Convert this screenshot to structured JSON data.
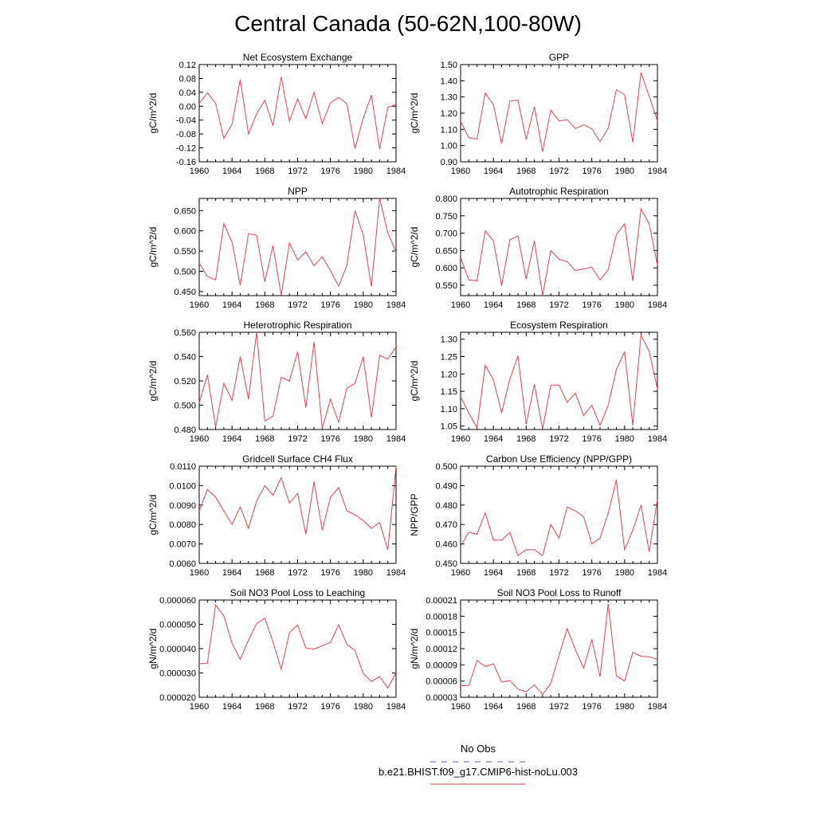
{
  "page": {
    "title": "Central Canada (50-62N,100-80W)"
  },
  "legend": {
    "obs_label": "No Obs",
    "obs_color": "#5555cc",
    "model_label": "b.e21.BHIST.f09_g17.CMIP6-hist-noLu.003",
    "model_color": "#e8404a"
  },
  "chart_data": [
    {
      "type": "line",
      "title": "Net Ecosystem Exchange",
      "ylabel": "gC/m^2/d",
      "xlim": [
        1960,
        1984
      ],
      "ylim": [
        -0.16,
        0.12
      ],
      "xticks": [
        "1960",
        "1964",
        "1968",
        "1972",
        "1976",
        "1980",
        "1984"
      ],
      "yticks": [
        "-0.16",
        "-0.12",
        "-0.08",
        "-0.04",
        "0.00",
        "0.04",
        "0.08",
        "0.12"
      ],
      "x": [
        1960,
        1961,
        1962,
        1963,
        1964,
        1965,
        1966,
        1967,
        1968,
        1969,
        1970,
        1971,
        1972,
        1973,
        1974,
        1975,
        1976,
        1977,
        1978,
        1979,
        1980,
        1981,
        1982,
        1983,
        1984
      ],
      "values": [
        0.008,
        0.039,
        0.008,
        -0.093,
        -0.052,
        0.077,
        -0.08,
        -0.022,
        0.017,
        -0.056,
        0.085,
        -0.043,
        0.021,
        -0.036,
        0.04,
        -0.05,
        0.01,
        0.025,
        0.007,
        -0.122,
        -0.035,
        0.032,
        -0.123,
        -0.003,
        0.005
      ]
    },
    {
      "type": "line",
      "title": "GPP",
      "ylabel": "gC/m^2/d",
      "xlim": [
        1960,
        1984
      ],
      "ylim": [
        0.9,
        1.5
      ],
      "xticks": [
        "1960",
        "1964",
        "1968",
        "1972",
        "1976",
        "1980",
        "1984"
      ],
      "yticks": [
        "0.90",
        "1.00",
        "1.10",
        "1.20",
        "1.30",
        "1.40",
        "1.50"
      ],
      "x": [
        1960,
        1961,
        1962,
        1963,
        1964,
        1965,
        1966,
        1967,
        1968,
        1969,
        1970,
        1971,
        1972,
        1973,
        1974,
        1975,
        1976,
        1977,
        1978,
        1979,
        1980,
        1981,
        1982,
        1983,
        1984
      ],
      "values": [
        1.15,
        1.048,
        1.04,
        1.325,
        1.253,
        1.013,
        1.275,
        1.28,
        1.037,
        1.24,
        0.962,
        1.22,
        1.152,
        1.16,
        1.105,
        1.128,
        1.103,
        1.025,
        1.108,
        1.345,
        1.313,
        1.02,
        1.45,
        1.305,
        1.153
      ]
    },
    {
      "type": "line",
      "title": "NPP",
      "ylabel": "gC/m^2/d",
      "xlim": [
        1960,
        1984
      ],
      "ylim": [
        0.44,
        0.68
      ],
      "xticks": [
        "1960",
        "1964",
        "1968",
        "1972",
        "1976",
        "1980",
        "1984"
      ],
      "yticks": [
        "0.450",
        "0.500",
        "0.550",
        "0.600",
        "0.650"
      ],
      "x": [
        1960,
        1961,
        1962,
        1963,
        1964,
        1965,
        1966,
        1967,
        1968,
        1969,
        1970,
        1971,
        1972,
        1973,
        1974,
        1975,
        1976,
        1977,
        1978,
        1979,
        1980,
        1981,
        1982,
        1983,
        1984
      ],
      "values": [
        0.52,
        0.487,
        0.479,
        0.618,
        0.572,
        0.465,
        0.593,
        0.589,
        0.474,
        0.563,
        0.441,
        0.57,
        0.528,
        0.548,
        0.514,
        0.536,
        0.502,
        0.463,
        0.515,
        0.65,
        0.59,
        0.462,
        0.68,
        0.595,
        0.548
      ]
    },
    {
      "type": "line",
      "title": "Autotrophic Respiration",
      "ylabel": "gC/m^2/d",
      "xlim": [
        1960,
        1984
      ],
      "ylim": [
        0.52,
        0.8
      ],
      "xticks": [
        "1960",
        "1964",
        "1968",
        "1972",
        "1976",
        "1980",
        "1984"
      ],
      "yticks": [
        "0.550",
        "0.600",
        "0.650",
        "0.700",
        "0.750",
        "0.800"
      ],
      "x": [
        1960,
        1961,
        1962,
        1963,
        1964,
        1965,
        1966,
        1967,
        1968,
        1969,
        1970,
        1971,
        1972,
        1973,
        1974,
        1975,
        1976,
        1977,
        1978,
        1979,
        1980,
        1981,
        1982,
        1983,
        1984
      ],
      "values": [
        0.63,
        0.565,
        0.563,
        0.707,
        0.678,
        0.548,
        0.681,
        0.692,
        0.568,
        0.678,
        0.52,
        0.65,
        0.625,
        0.618,
        0.592,
        0.597,
        0.602,
        0.565,
        0.595,
        0.696,
        0.727,
        0.563,
        0.77,
        0.727,
        0.608
      ]
    },
    {
      "type": "line",
      "title": "Heterotrophic Respiration",
      "ylabel": "gC/m^2/d",
      "xlim": [
        1960,
        1984
      ],
      "ylim": [
        0.48,
        0.56
      ],
      "xticks": [
        "1960",
        "1964",
        "1968",
        "1972",
        "1976",
        "1980",
        "1984"
      ],
      "yticks": [
        "0.480",
        "0.500",
        "0.520",
        "0.540",
        "0.560"
      ],
      "x": [
        1960,
        1961,
        1962,
        1963,
        1964,
        1965,
        1966,
        1967,
        1968,
        1969,
        1970,
        1971,
        1972,
        1973,
        1974,
        1975,
        1976,
        1977,
        1978,
        1979,
        1980,
        1981,
        1982,
        1983,
        1984
      ],
      "values": [
        0.502,
        0.525,
        0.482,
        0.518,
        0.504,
        0.54,
        0.505,
        0.56,
        0.487,
        0.491,
        0.523,
        0.52,
        0.544,
        0.498,
        0.552,
        0.481,
        0.505,
        0.486,
        0.514,
        0.518,
        0.54,
        0.49,
        0.541,
        0.538,
        0.548
      ]
    },
    {
      "type": "line",
      "title": "Ecosystem Respiration",
      "ylabel": "gC/m^2/d",
      "xlim": [
        1960,
        1984
      ],
      "ylim": [
        1.04,
        1.32
      ],
      "xticks": [
        "1960",
        "1964",
        "1968",
        "1972",
        "1976",
        "1980",
        "1984"
      ],
      "yticks": [
        "1.05",
        "1.10",
        "1.15",
        "1.20",
        "1.25",
        "1.30"
      ],
      "x": [
        1960,
        1961,
        1962,
        1963,
        1964,
        1965,
        1966,
        1967,
        1968,
        1969,
        1970,
        1971,
        1972,
        1973,
        1974,
        1975,
        1976,
        1977,
        1978,
        1979,
        1980,
        1981,
        1982,
        1983,
        1984
      ],
      "values": [
        1.135,
        1.087,
        1.045,
        1.225,
        1.183,
        1.088,
        1.185,
        1.252,
        1.055,
        1.17,
        1.042,
        1.168,
        1.168,
        1.118,
        1.145,
        1.08,
        1.11,
        1.052,
        1.11,
        1.213,
        1.263,
        1.052,
        1.312,
        1.265,
        1.157
      ]
    },
    {
      "type": "line",
      "title": "Gridcell Surface CH4 Flux",
      "ylabel": "gC/m^2/d",
      "xlim": [
        1960,
        1984
      ],
      "ylim": [
        0.006,
        0.011
      ],
      "xticks": [
        "1960",
        "1964",
        "1968",
        "1972",
        "1976",
        "1980",
        "1984"
      ],
      "yticks": [
        "0.0060",
        "0.0070",
        "0.0080",
        "0.0090",
        "0.0100",
        "0.0110"
      ],
      "x": [
        1960,
        1961,
        1962,
        1963,
        1964,
        1965,
        1966,
        1967,
        1968,
        1969,
        1970,
        1971,
        1972,
        1973,
        1974,
        1975,
        1976,
        1977,
        1978,
        1979,
        1980,
        1981,
        1982,
        1983,
        1984
      ],
      "values": [
        0.0087,
        0.0098,
        0.0094,
        0.0087,
        0.008,
        0.0089,
        0.0078,
        0.0092,
        0.01,
        0.0095,
        0.0104,
        0.0091,
        0.0096,
        0.0075,
        0.0102,
        0.0077,
        0.0094,
        0.0099,
        0.0087,
        0.0085,
        0.0082,
        0.0078,
        0.0081,
        0.0067,
        0.011
      ]
    },
    {
      "type": "line",
      "title": "Carbon Use Efficiency (NPP/GPP)",
      "ylabel": "NPP/GPP",
      "xlim": [
        1960,
        1984
      ],
      "ylim": [
        0.45,
        0.5
      ],
      "xticks": [
        "1960",
        "1964",
        "1968",
        "1972",
        "1976",
        "1980",
        "1984"
      ],
      "yticks": [
        "0.450",
        "0.460",
        "0.470",
        "0.480",
        "0.490",
        "0.500"
      ],
      "x": [
        1960,
        1961,
        1962,
        1963,
        1964,
        1965,
        1966,
        1967,
        1968,
        1969,
        1970,
        1971,
        1972,
        1973,
        1974,
        1975,
        1976,
        1977,
        1978,
        1979,
        1980,
        1981,
        1982,
        1983,
        1984
      ],
      "values": [
        0.459,
        0.466,
        0.465,
        0.476,
        0.462,
        0.462,
        0.466,
        0.454,
        0.457,
        0.457,
        0.454,
        0.47,
        0.463,
        0.479,
        0.477,
        0.474,
        0.46,
        0.463,
        0.476,
        0.493,
        0.457,
        0.467,
        0.48,
        0.456,
        0.483
      ]
    },
    {
      "type": "line",
      "title": "Soil NO3 Pool Loss to Leaching",
      "ylabel": "gN/m^2/d",
      "xlim": [
        1960,
        1984
      ],
      "ylim": [
        2e-05,
        6e-05
      ],
      "xticks": [
        "1960",
        "1964",
        "1968",
        "1972",
        "1976",
        "1980",
        "1984"
      ],
      "yticks": [
        "0.000020",
        "0.000030",
        "0.000040",
        "0.000050",
        "0.000060"
      ],
      "x": [
        1960,
        1961,
        1962,
        1963,
        1964,
        1965,
        1966,
        1967,
        1968,
        1969,
        1970,
        1971,
        1972,
        1973,
        1974,
        1975,
        1976,
        1977,
        1978,
        1979,
        1980,
        1981,
        1982,
        1983,
        1984
      ],
      "values": [
        3.38e-05,
        3.4e-05,
        5.8e-05,
        5.35e-05,
        4.22e-05,
        3.56e-05,
        4.35e-05,
        5.03e-05,
        5.25e-05,
        4.28e-05,
        3.15e-05,
        4.65e-05,
        4.98e-05,
        4.03e-05,
        3.98e-05,
        4.12e-05,
        4.26e-05,
        4.98e-05,
        4.18e-05,
        3.92e-05,
        2.98e-05,
        2.65e-05,
        2.85e-05,
        2.38e-05,
        3.01e-05
      ]
    },
    {
      "type": "line",
      "title": "Soil NO3 Pool Loss to Runoff",
      "ylabel": "gN/m^2/d",
      "xlim": [
        1960,
        1984
      ],
      "ylim": [
        3e-05,
        0.00021
      ],
      "xticks": [
        "1960",
        "1964",
        "1968",
        "1972",
        "1976",
        "1980",
        "1984"
      ],
      "yticks": [
        "0.00003",
        "0.00006",
        "0.00009",
        "0.00012",
        "0.00015",
        "0.00018",
        "0.00021"
      ],
      "x": [
        1960,
        1961,
        1962,
        1963,
        1964,
        1965,
        1966,
        1967,
        1968,
        1969,
        1970,
        1971,
        1972,
        1973,
        1974,
        1975,
        1976,
        1977,
        1978,
        1979,
        1980,
        1981,
        1982,
        1983,
        1984
      ],
      "values": [
        5.1e-05,
        5.2e-05,
        9.8e-05,
        8.7e-05,
        9.2e-05,
        5.8e-05,
        6.1e-05,
        4.5e-05,
        4e-05,
        5.3e-05,
        3.5e-05,
        5.6e-05,
        0.000107,
        0.000157,
        0.000118,
        8.4e-05,
        0.000137,
        6.8e-05,
        0.000203,
        7e-05,
        6e-05,
        0.000113,
        0.000106,
        0.000105,
        0.0001
      ]
    }
  ]
}
